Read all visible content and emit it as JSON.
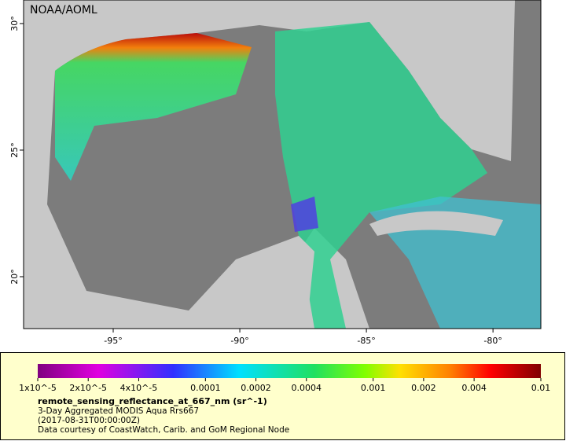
{
  "map": {
    "credit": "NOAA/AOML",
    "xlim": [
      -98.54,
      -78.11
    ],
    "ylim": [
      17.95,
      30.93
    ],
    "xticks": [
      {
        "value": -95,
        "label": "-95°"
      },
      {
        "value": -90,
        "label": "-90°"
      },
      {
        "value": -85,
        "label": "-85°"
      },
      {
        "value": -80,
        "label": "-80°"
      }
    ],
    "yticks": [
      {
        "value": 20,
        "label": "20°"
      },
      {
        "value": 25,
        "label": "25°"
      },
      {
        "value": 30,
        "label": "30°"
      }
    ]
  },
  "colorbar": {
    "scale": "log",
    "clim": [
      1e-05,
      0.01
    ],
    "ticks": [
      {
        "value": 1e-05,
        "label": "1x10^-5"
      },
      {
        "value": 2e-05,
        "label": "2x10^-5"
      },
      {
        "value": 4e-05,
        "label": "4x10^-5"
      },
      0.0001,
      0.0002,
      0.0004,
      0.001,
      0.002,
      0.004,
      0.01
    ]
  },
  "caption": {
    "variable": "remote_sensing_reflectance_at_667_nm (sr^-1)",
    "lines": [
      "3-Day Aggregated MODIS Aqua Rrs667",
      "(2017-08-31T00:00:00Z)",
      "Data courtesy of CoastWatch, Carib. and GoM Regional Node"
    ]
  }
}
